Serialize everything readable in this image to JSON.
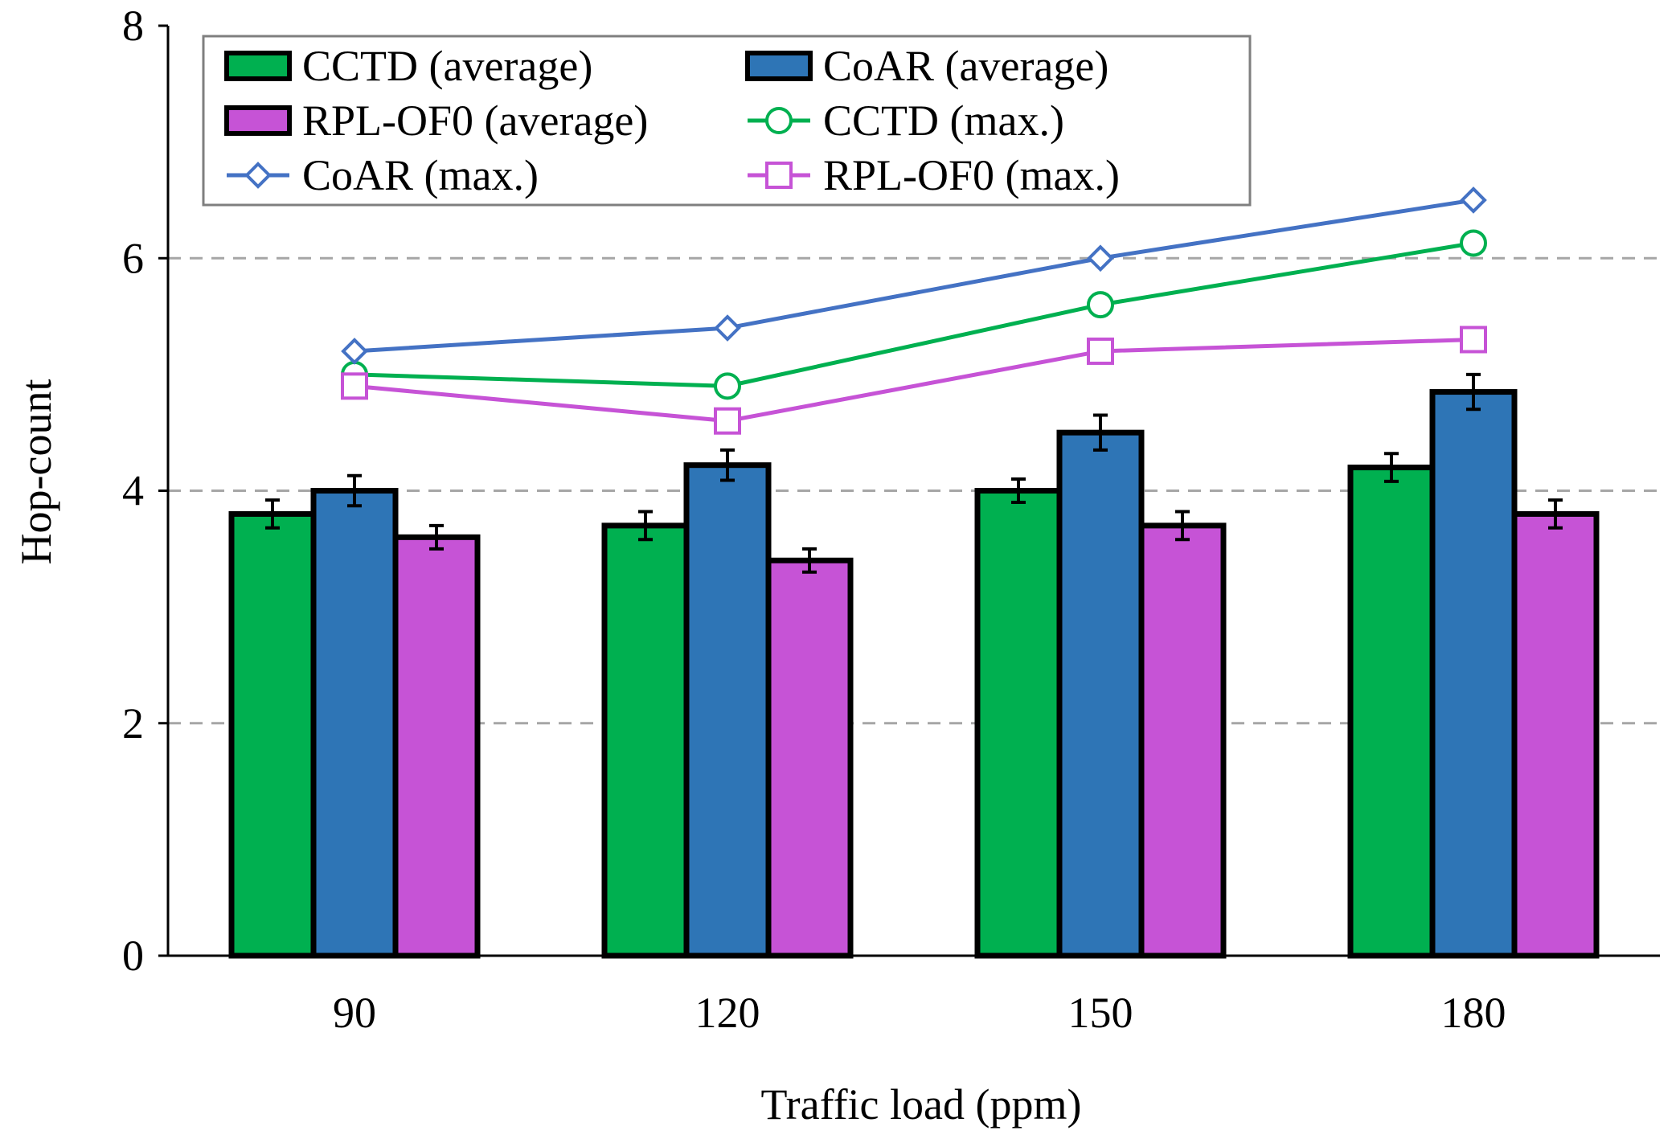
{
  "chart_data": {
    "type": "bar",
    "title": "",
    "xlabel": "Traffic load (ppm)",
    "ylabel": "Hop-count",
    "categories": [
      "90",
      "120",
      "150",
      "180"
    ],
    "ylim": [
      0,
      8
    ],
    "yticks": [
      "0",
      "2",
      "4",
      "6",
      "8"
    ],
    "grid": "horizontal dashed",
    "legend_position": "top-left",
    "bar_series": [
      {
        "name": "CCTD (average)",
        "values": [
          3.8,
          3.7,
          4.0,
          4.2
        ],
        "errors": [
          0.12,
          0.12,
          0.1,
          0.12
        ],
        "color": "#00b050"
      },
      {
        "name": "CoAR (average)",
        "values": [
          4.0,
          4.22,
          4.5,
          4.85
        ],
        "errors": [
          0.13,
          0.13,
          0.15,
          0.15
        ],
        "color": "#2e75b6"
      },
      {
        "name": "RPL-OF0 (average)",
        "values": [
          3.6,
          3.4,
          3.7,
          3.8
        ],
        "errors": [
          0.1,
          0.1,
          0.12,
          0.12
        ],
        "color": "#c653d6"
      }
    ],
    "line_series": [
      {
        "name": "CCTD (max.)",
        "values": [
          5.0,
          4.9,
          5.6,
          6.13
        ],
        "color": "#00b050",
        "marker": "circle"
      },
      {
        "name": "CoAR (max.)",
        "values": [
          5.2,
          5.4,
          6.0,
          6.5
        ],
        "color": "#4472c4",
        "marker": "diamond"
      },
      {
        "name": "RPL-OF0 (max.)",
        "values": [
          4.9,
          4.6,
          5.2,
          5.3
        ],
        "color": "#c653d6",
        "marker": "square"
      }
    ],
    "legend_order": [
      "CCTD (average)",
      "CoAR (average)",
      "RPL-OF0 (average)",
      "CCTD (max.)",
      "CoAR (max.)",
      "RPL-OF0 (max.)"
    ]
  }
}
